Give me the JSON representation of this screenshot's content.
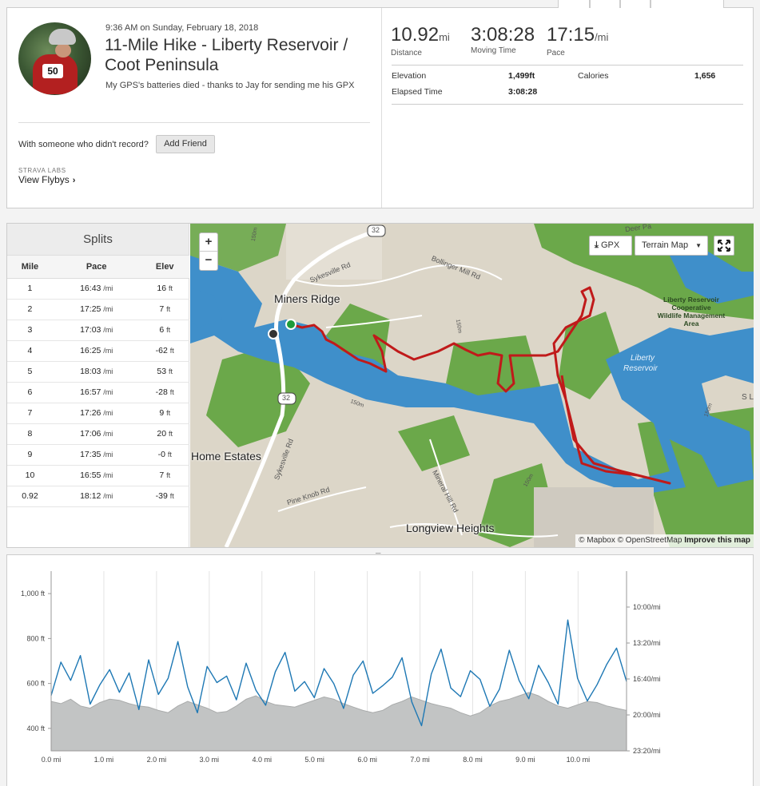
{
  "activity": {
    "timestamp": "9:36 AM on Sunday, February 18, 2018",
    "title": "11-Mile Hike - Liberty Reservoir / Coot Peninsula",
    "description": "My GPS's batteries died - thanks to Jay for sending me his GPX",
    "avatar_number": "50",
    "friend_prompt": "With someone who didn't record?",
    "add_friend_label": "Add Friend",
    "labs_label": "STRAVA LABS",
    "flyby_label": "View Flybys"
  },
  "stats": {
    "distance": {
      "value": "10.92",
      "unit": "mi",
      "label": "Distance"
    },
    "moving_time": {
      "value": "3:08:28",
      "label": "Moving Time"
    },
    "pace": {
      "value": "17:15",
      "unit": "/mi",
      "label": "Pace"
    },
    "elevation_label": "Elevation",
    "elevation_value": "1,499ft",
    "calories_label": "Calories",
    "calories_value": "1,656",
    "elapsed_label": "Elapsed Time",
    "elapsed_value": "3:08:28"
  },
  "splits": {
    "title": "Splits",
    "headers": [
      "Mile",
      "Pace",
      "Elev"
    ],
    "pace_unit": "/mi",
    "elev_unit": "ft",
    "rows": [
      {
        "mile": "1",
        "pace": "16:43",
        "elev": "16"
      },
      {
        "mile": "2",
        "pace": "17:25",
        "elev": "7"
      },
      {
        "mile": "3",
        "pace": "17:03",
        "elev": "6"
      },
      {
        "mile": "4",
        "pace": "16:25",
        "elev": "-62"
      },
      {
        "mile": "5",
        "pace": "18:03",
        "elev": "53"
      },
      {
        "mile": "6",
        "pace": "16:57",
        "elev": "-28"
      },
      {
        "mile": "7",
        "pace": "17:26",
        "elev": "9"
      },
      {
        "mile": "8",
        "pace": "17:06",
        "elev": "20"
      },
      {
        "mile": "9",
        "pace": "17:35",
        "elev": "-0"
      },
      {
        "mile": "10",
        "pace": "16:55",
        "elev": "7"
      },
      {
        "mile": "0.92",
        "pace": "18:12",
        "elev": "-39"
      }
    ]
  },
  "map": {
    "zoom_in": "+",
    "zoom_out": "−",
    "gpx_label": "GPX",
    "terrain_label": "Terrain Map",
    "attribution_mapbox": "© Mapbox",
    "attribution_osm": "© OpenStreetMap",
    "attribution_improve": "Improve this map",
    "places": {
      "miners_ridge": "Miners Ridge",
      "home_estates": "Home Estates",
      "longview_heights": "Longview Heights"
    },
    "roads": {
      "route_32_top": "32",
      "route_32_mid": "32",
      "sykesville_top": "Sykesville Rd",
      "sykesville_bottom": "Sykesville Rd",
      "bollinger": "Bollinger Mill Rd",
      "pine_knob": "Pine Knob Rd",
      "mineral_hill": "Mineral Hill Rd",
      "deer_park": "Deer Pa",
      "sl": "S L"
    },
    "contours": {
      "c1": "150m",
      "c2": "150m",
      "c3": "150m",
      "c4": "150m",
      "c5": "150m"
    },
    "water_label_1": "Liberty",
    "water_label_2": "Reservoir",
    "park_label": [
      "Liberty Reservoir",
      "Cooperative",
      "Wildlife Management",
      "Area"
    ]
  },
  "chart_data": {
    "type": "area",
    "series": [
      {
        "name": "Elevation",
        "unit": "ft",
        "values": [
          520,
          510,
          530,
          500,
          490,
          515,
          530,
          525,
          510,
          500,
          495,
          480,
          470,
          500,
          520,
          505,
          490,
          470,
          475,
          500,
          530,
          545,
          520,
          505,
          500,
          495,
          510,
          525,
          540,
          530,
          510,
          495,
          480,
          470,
          480,
          505,
          520,
          540,
          525,
          510,
          500,
          490,
          470,
          455,
          470,
          500,
          520,
          530,
          545,
          560,
          545,
          520,
          500,
          490,
          505,
          520,
          515,
          500,
          490,
          480
        ]
      },
      {
        "name": "Pace",
        "unit": "/mi",
        "values": [
          18.2,
          15.1,
          16.8,
          14.5,
          19.0,
          17.2,
          15.8,
          17.9,
          16.1,
          19.5,
          14.9,
          18.1,
          16.6,
          13.2,
          17.4,
          19.8,
          15.5,
          17.0,
          16.4,
          18.6,
          15.2,
          17.7,
          19.1,
          16.0,
          14.2,
          17.8,
          16.9,
          18.4,
          15.7,
          17.1,
          19.4,
          16.3,
          15.0,
          18.0,
          17.3,
          16.5,
          14.7,
          18.8,
          21.0,
          16.2,
          13.9,
          17.5,
          18.3,
          15.9,
          16.7,
          19.2,
          17.6,
          14.0,
          16.8,
          18.5,
          15.4,
          17.0,
          19.0,
          11.2,
          16.6,
          18.7,
          17.2,
          15.3,
          13.8,
          16.9
        ]
      }
    ],
    "x": [
      0.0,
      0.185,
      0.37,
      0.555,
      0.74,
      0.925,
      1.11,
      1.295,
      1.48,
      1.665,
      1.85,
      2.035,
      2.22,
      2.405,
      2.59,
      2.775,
      2.96,
      3.145,
      3.33,
      3.515,
      3.7,
      3.885,
      4.07,
      4.255,
      4.44,
      4.625,
      4.81,
      4.995,
      5.18,
      5.365,
      5.55,
      5.735,
      5.92,
      6.105,
      6.29,
      6.475,
      6.66,
      6.845,
      7.03,
      7.215,
      7.4,
      7.585,
      7.77,
      7.955,
      8.14,
      8.325,
      8.51,
      8.695,
      8.88,
      9.065,
      9.25,
      9.435,
      9.62,
      9.805,
      9.99,
      10.175,
      10.36,
      10.545,
      10.73,
      10.92
    ],
    "xlim": [
      0,
      10.92
    ],
    "ylim_elevation": [
      300,
      1100
    ],
    "ylim_pace_minutes": [
      6.67,
      23.33
    ],
    "x_ticks": [
      "0.0 mi",
      "1.0 mi",
      "2.0 mi",
      "3.0 mi",
      "4.0 mi",
      "5.0 mi",
      "6.0 mi",
      "7.0 mi",
      "8.0 mi",
      "9.0 mi",
      "10.0 mi"
    ],
    "y_ticks_left": [
      "400 ft",
      "600 ft",
      "800 ft",
      "1,000 ft"
    ],
    "y_ticks_right": [
      "10:00/mi",
      "13:20/mi",
      "16:40/mi",
      "20:00/mi",
      "23:20/mi"
    ],
    "colors": {
      "elevation": "#c2c4c4",
      "pace": "#1e78b4"
    },
    "grid": true
  }
}
